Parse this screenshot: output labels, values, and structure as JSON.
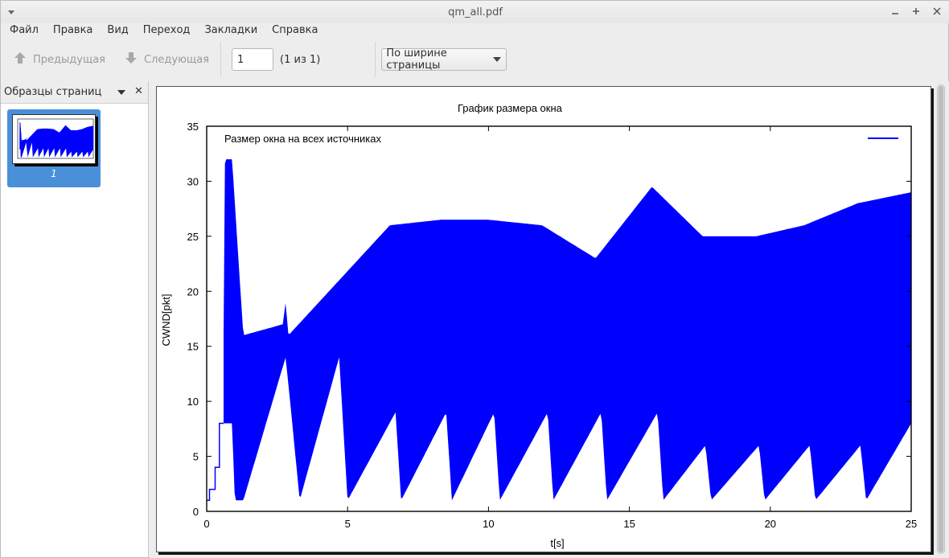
{
  "window": {
    "title": "qm_all.pdf"
  },
  "menubar": [
    "Файл",
    "Правка",
    "Вид",
    "Переход",
    "Закладки",
    "Справка"
  ],
  "toolbar": {
    "prev_label": "Предыдущая",
    "next_label": "Следующая",
    "page_value": "1",
    "page_count": "(1 из 1)",
    "zoom_value": "По ширине страницы"
  },
  "sidepanel": {
    "title": "Образцы страниц",
    "thumb_label": "1"
  },
  "colors": {
    "series": "#0000ff",
    "selection": "#4a90d9"
  },
  "chart_data": {
    "type": "area",
    "title": "График размера окна",
    "xlabel": "t[s]",
    "ylabel": "CWND[pkt]",
    "legend": "top-right",
    "xlim": [
      0,
      25
    ],
    "ylim": [
      0,
      35
    ],
    "xticks": [
      "0",
      "5",
      "10",
      "15",
      "20",
      "25"
    ],
    "yticks": [
      "0",
      "5",
      "10",
      "15",
      "20",
      "25",
      "30",
      "35"
    ],
    "annotation": "Размер окна на всех источниках",
    "series": [
      {
        "start": {
          "x": [
            0,
            0.1,
            0.1,
            0.3,
            0.3,
            0.45,
            0.45,
            0.6
          ],
          "y": [
            1,
            1,
            2,
            2,
            4,
            4,
            8,
            8
          ]
        },
        "x_max": [
          0.6,
          0.65,
          0.9,
          1.3,
          2.7,
          2.8,
          2.9,
          4.7,
          6.5,
          8.3,
          10.0,
          11.9,
          13.8,
          15.8,
          17.6,
          19.5,
          21.2,
          23.1,
          25.0
        ],
        "y_max": [
          16,
          32,
          32,
          16,
          17,
          19,
          16,
          21,
          26,
          26.5,
          26.5,
          26,
          23,
          29.5,
          25,
          25,
          26,
          28,
          29
        ],
        "x_min": [
          0.6,
          0.9,
          1.0,
          1.3,
          2.8,
          3.0,
          3.3,
          4.7,
          5.0,
          6.7,
          6.9,
          8.5,
          8.7,
          10.2,
          10.4,
          12.1,
          12.3,
          14.0,
          14.2,
          16.0,
          16.2,
          17.7,
          17.9,
          19.6,
          19.8,
          21.4,
          21.6,
          23.2,
          23.4,
          25.0
        ],
        "y_min": [
          8,
          8,
          1,
          1,
          14,
          9,
          1,
          14,
          1,
          9,
          1,
          9,
          1,
          9,
          1,
          9,
          1,
          9,
          1,
          9,
          1,
          6,
          1,
          6,
          1,
          6,
          1,
          6,
          1,
          8
        ]
      }
    ]
  }
}
